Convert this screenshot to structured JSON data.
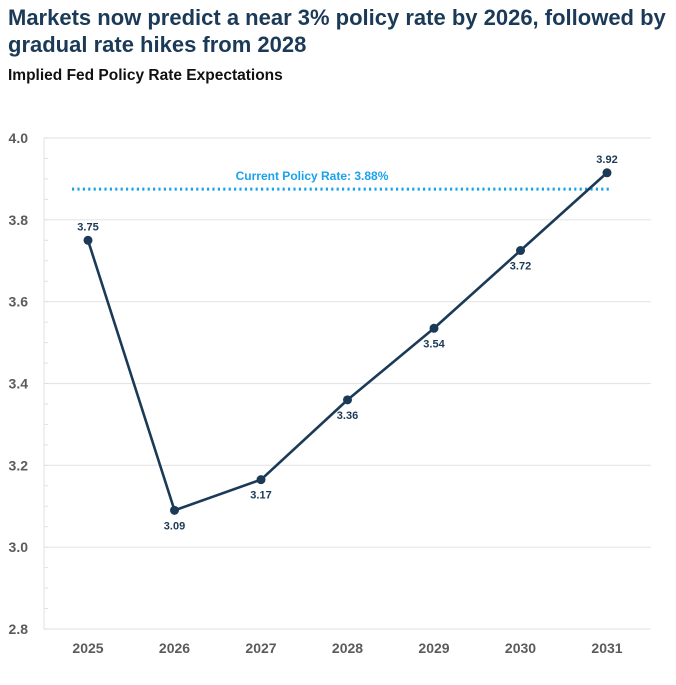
{
  "header": {
    "title": "Markets now predict a near 3% policy rate by 2026, followed by gradual rate hikes from 2028",
    "subtitle": "Implied Fed Policy Rate Expectations"
  },
  "chart_data": {
    "type": "line",
    "title": "Implied Fed Policy Rate Expectations",
    "xlabel": "",
    "ylabel": "",
    "categories": [
      "2025",
      "2026",
      "2027",
      "2028",
      "2029",
      "2030",
      "2031"
    ],
    "series": [
      {
        "name": "Implied Fed Policy Rate",
        "values": [
          3.75,
          3.09,
          3.165,
          3.36,
          3.535,
          3.725,
          3.915
        ],
        "labels": [
          "3.75",
          "3.09",
          "3.17",
          "3.36",
          "3.54",
          "3.72",
          "3.92"
        ],
        "label_position": [
          "above",
          "below",
          "below",
          "below",
          "below",
          "below",
          "above"
        ],
        "color": "#1b3a57"
      }
    ],
    "reference_line": {
      "label": "Current Policy Rate: 3.88%",
      "value": 3.875,
      "color": "#1aa3ec",
      "style": "dotted"
    },
    "ylim": [
      2.8,
      4.0
    ],
    "yticks": [
      2.8,
      3.0,
      3.2,
      3.4,
      3.6,
      3.8,
      4.0
    ],
    "ytick_labels": [
      "2.8",
      "3.0",
      "3.2",
      "3.4",
      "3.6",
      "3.8",
      "4.0"
    ],
    "grid": true,
    "legend": "none"
  }
}
